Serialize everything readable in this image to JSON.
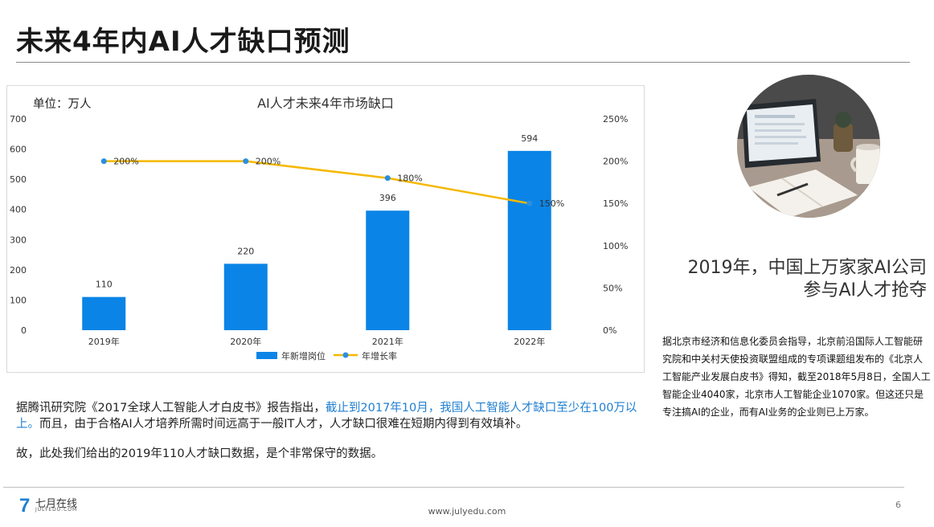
{
  "slide": {
    "title": "未来4年内AI人才缺口预测",
    "page_number": "6",
    "website": "www.julyedu.com",
    "logo_cn": "七月在线",
    "logo_en": "JULYEDU.COM"
  },
  "chart_data": {
    "type": "bar",
    "title": "AI人才未来4年市场缺口",
    "unit_label": "单位：万人",
    "categories": [
      "2019年",
      "2020年",
      "2021年",
      "2022年"
    ],
    "series": [
      {
        "name": "年新增岗位",
        "type": "bar",
        "axis": "left",
        "values": [
          110,
          220,
          396,
          594
        ],
        "color": "#0a84e6",
        "labels": [
          "110",
          "220",
          "396",
          "594"
        ]
      },
      {
        "name": "年增长率",
        "type": "line",
        "axis": "right",
        "values": [
          200,
          200,
          180,
          150
        ],
        "color": "#f5b800",
        "labels": [
          "200%",
          "200%",
          "180%",
          "150%"
        ]
      }
    ],
    "y_left": {
      "ylim": [
        0,
        700
      ],
      "ticks": [
        "0",
        "100",
        "200",
        "300",
        "400",
        "500",
        "600",
        "700"
      ]
    },
    "y_right": {
      "ylim": [
        0,
        250
      ],
      "ticks": [
        "0%",
        "50%",
        "100%",
        "150%",
        "200%",
        "250%"
      ]
    },
    "grid": false,
    "legend": "bottom"
  },
  "sidebar": {
    "headline_line1": "2019年，中国上万家家AI公司",
    "headline_line2": "参与AI人才抢夺",
    "body": "据北京市经济和信息化委员会指导，北京前沿国际人工智能研究院和中关村天使投资联盟组成的专项课题组发布的《北京人工智能产业发展白皮书》得知，截至2018年5月8日，全国人工智能企业4040家，北京市人工智能企业1070家。但这还只是专注搞AI的企业，而有AI业务的企业则已上万家。"
  },
  "paragraph1": {
    "part1": "据腾讯研究院《2017全球人工智能人才白皮书》报告指出，",
    "highlight": "截止到2017年10月，我国人工智能人才缺口至少在100万以上。",
    "part2": "而且，由于合格AI人才培养所需时间远高于一般IT人才，人才缺口很难在短期内得到有效填补。"
  },
  "paragraph2": "故，此处我们给出的2019年110人才缺口数据，是个非常保守的数据。",
  "photo": {
    "icon": "laptop-notebook-photo"
  }
}
